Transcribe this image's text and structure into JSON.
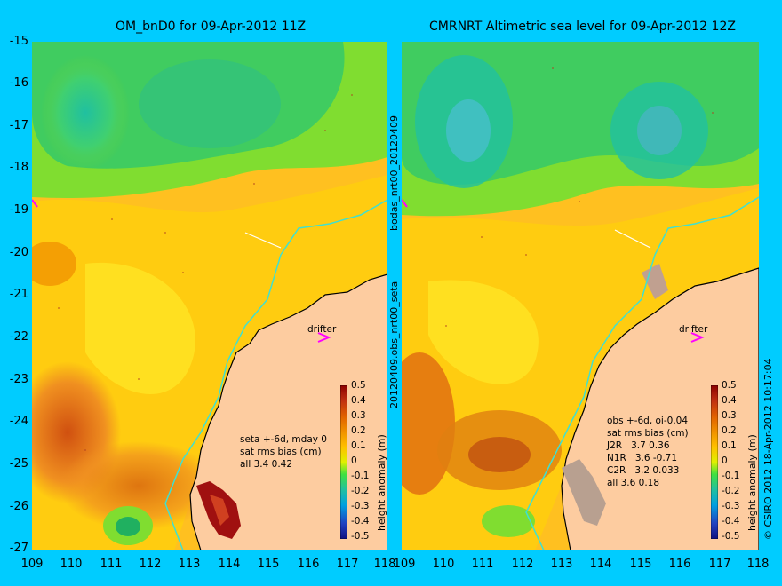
{
  "left_panel": {
    "title": "OM_bnD0 for 09-Apr-2012 11Z",
    "stats": "seta +-6d, mday 0\nsat rms bias (cm)\nall 3.4 0.42",
    "drifter_label": "drifter"
  },
  "right_panel": {
    "title": "CMRNRT Altimetric sea level  for 09-Apr-2012 12Z",
    "stats": "obs +-6d, oi-0.04\nsat rms bias (cm)\nJ2R   3.7 0.36\nN1R   3.6 -0.71\nC2R   3.2 0.033\nall 3.6 0.18",
    "drifter_label": "drifter"
  },
  "middle_vertical_text": "20120409.obs_nrt00_seta",
  "middle_vertical_text_top": "bodas_nrt00_20120409",
  "right_vertical_text": "© CSIRO 2012  18-Apr-2012 10:17:04",
  "colorbar": {
    "label": "height anomaly (m)",
    "ticks": [
      "0.5",
      "0.4",
      "0.3",
      "0.2",
      "0.1",
      "0",
      "-0.1",
      "-0.2",
      "-0.3",
      "-0.4",
      "-0.5"
    ],
    "colors": [
      "#8b0000",
      "#c0392b",
      "#e05a00",
      "#f08c00",
      "#ffb000",
      "#ffe000",
      "#c8f000",
      "#40e040",
      "#20c090",
      "#00a0d0",
      "#2040c0",
      "#101080"
    ]
  },
  "axes": {
    "lat_labels": [
      "-15",
      "-16",
      "-17",
      "-18",
      "-19",
      "-20",
      "-21",
      "-22",
      "-23",
      "-24",
      "-25",
      "-26",
      "-27"
    ],
    "lon_labels": [
      "109",
      "110",
      "111",
      "112",
      "113",
      "114",
      "115",
      "116",
      "117",
      "118"
    ]
  },
  "colors": {
    "background": "#00ccff",
    "land": "#fdcca0",
    "coast_line": "#40e0d0",
    "drifter_marker": "#ff00ff"
  }
}
